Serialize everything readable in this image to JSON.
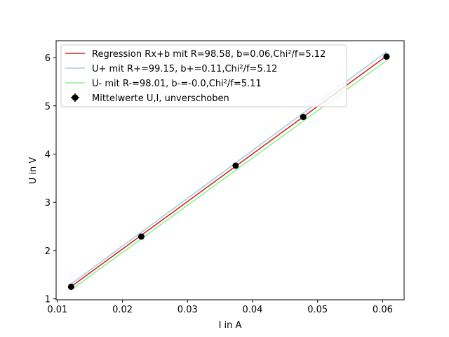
{
  "chart_data": {
    "type": "line",
    "xlabel": "I in A",
    "ylabel": "U in V",
    "xlim": [
      0.0098,
      0.0633
    ],
    "ylim": [
      0.98,
      6.35
    ],
    "xticks": [
      0.01,
      0.02,
      0.03,
      0.04,
      0.05,
      0.06
    ],
    "xtick_labels": [
      "0.01",
      "0.02",
      "0.03",
      "0.04",
      "0.05",
      "0.06"
    ],
    "yticks": [
      1,
      2,
      3,
      4,
      5,
      6
    ],
    "ytick_labels": [
      "1",
      "2",
      "3",
      "4",
      "5",
      "6"
    ],
    "grid": false,
    "legend_position": "top-left",
    "x_range": [
      0.0121,
      0.0606
    ],
    "series": [
      {
        "name": "Regression Rx+b mit R=98.58, b=0.06,Chi²/f=5.12",
        "kind": "line",
        "color": "#d62728",
        "slope": 98.58,
        "intercept": 0.06
      },
      {
        "name": "U+ mit R+=99.15, b+=0.11,Chi²/f=5.12",
        "kind": "line",
        "color": "#a6cee3",
        "slope": 99.15,
        "intercept": 0.11
      },
      {
        "name": "U- mit R-=98.01, b-=-0.0,Chi²/f=5.11",
        "kind": "line",
        "color": "#90ee90",
        "slope": 98.01,
        "intercept": 0.0
      },
      {
        "name": "Mittelwerte U,I, unverschoben",
        "kind": "errorbar",
        "color": "#000000",
        "points": [
          {
            "x": 0.0121,
            "y": 1.25
          },
          {
            "x": 0.0229,
            "y": 2.29
          },
          {
            "x": 0.0374,
            "y": 3.76
          },
          {
            "x": 0.0478,
            "y": 4.77
          },
          {
            "x": 0.0606,
            "y": 6.02
          }
        ]
      }
    ]
  }
}
